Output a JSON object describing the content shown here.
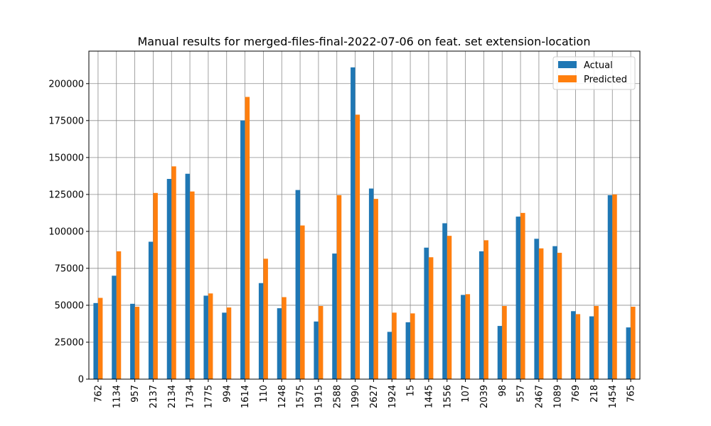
{
  "chart_data": {
    "type": "bar",
    "title": "Manual results for merged-files-final-2022-07-06 on feat. set extension-location",
    "xlabel": "",
    "ylabel": "",
    "ylim": [
      0,
      222000
    ],
    "yticks": [
      0,
      25000,
      50000,
      75000,
      100000,
      125000,
      150000,
      175000,
      200000
    ],
    "grid": true,
    "legend_position": "top-right",
    "categories": [
      "762",
      "1134",
      "957",
      "2137",
      "2134",
      "1734",
      "1775",
      "994",
      "1614",
      "110",
      "1248",
      "1575",
      "1915",
      "2588",
      "1990",
      "2627",
      "1924",
      "15",
      "1445",
      "1556",
      "107",
      "2039",
      "98",
      "557",
      "2467",
      "1089",
      "769",
      "218",
      "1454",
      "765"
    ],
    "series": [
      {
        "name": "Actual",
        "color": "#1f77b4",
        "values": [
          51500,
          70000,
          51000,
          93000,
          135500,
          139000,
          56500,
          45000,
          175000,
          65000,
          48000,
          128000,
          39000,
          85000,
          211000,
          129000,
          32000,
          38500,
          89000,
          105500,
          57000,
          86500,
          36000,
          110000,
          95000,
          90000,
          46000,
          42500,
          124500,
          35000
        ]
      },
      {
        "name": "Predicted",
        "color": "#ff7f0e",
        "values": [
          55000,
          86500,
          49000,
          126000,
          144000,
          127000,
          58000,
          48500,
          191000,
          81500,
          55500,
          104000,
          49500,
          124500,
          179000,
          122000,
          45000,
          44500,
          82500,
          97000,
          57500,
          94000,
          49500,
          112500,
          88500,
          85500,
          44000,
          49500,
          125000,
          49000
        ]
      }
    ]
  }
}
